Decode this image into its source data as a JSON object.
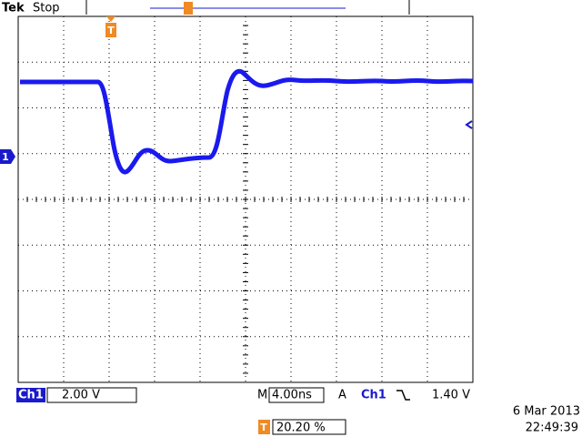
{
  "header": {
    "brand": "Tek",
    "status": "Stop"
  },
  "markers": {
    "trigger_position": "T",
    "channel": "1"
  },
  "footer": {
    "channel_label": "Ch1",
    "volts_per_div": "2.00 V",
    "timebase_label": "M",
    "time_per_div": "4.00ns",
    "trigger_mode": "A",
    "trigger_source": "Ch1",
    "trigger_level": "1.40 V",
    "trigger_marker": "T",
    "trigger_position": "20.20 %",
    "date": "6 Mar  2013",
    "time": "22:49:39"
  }
}
